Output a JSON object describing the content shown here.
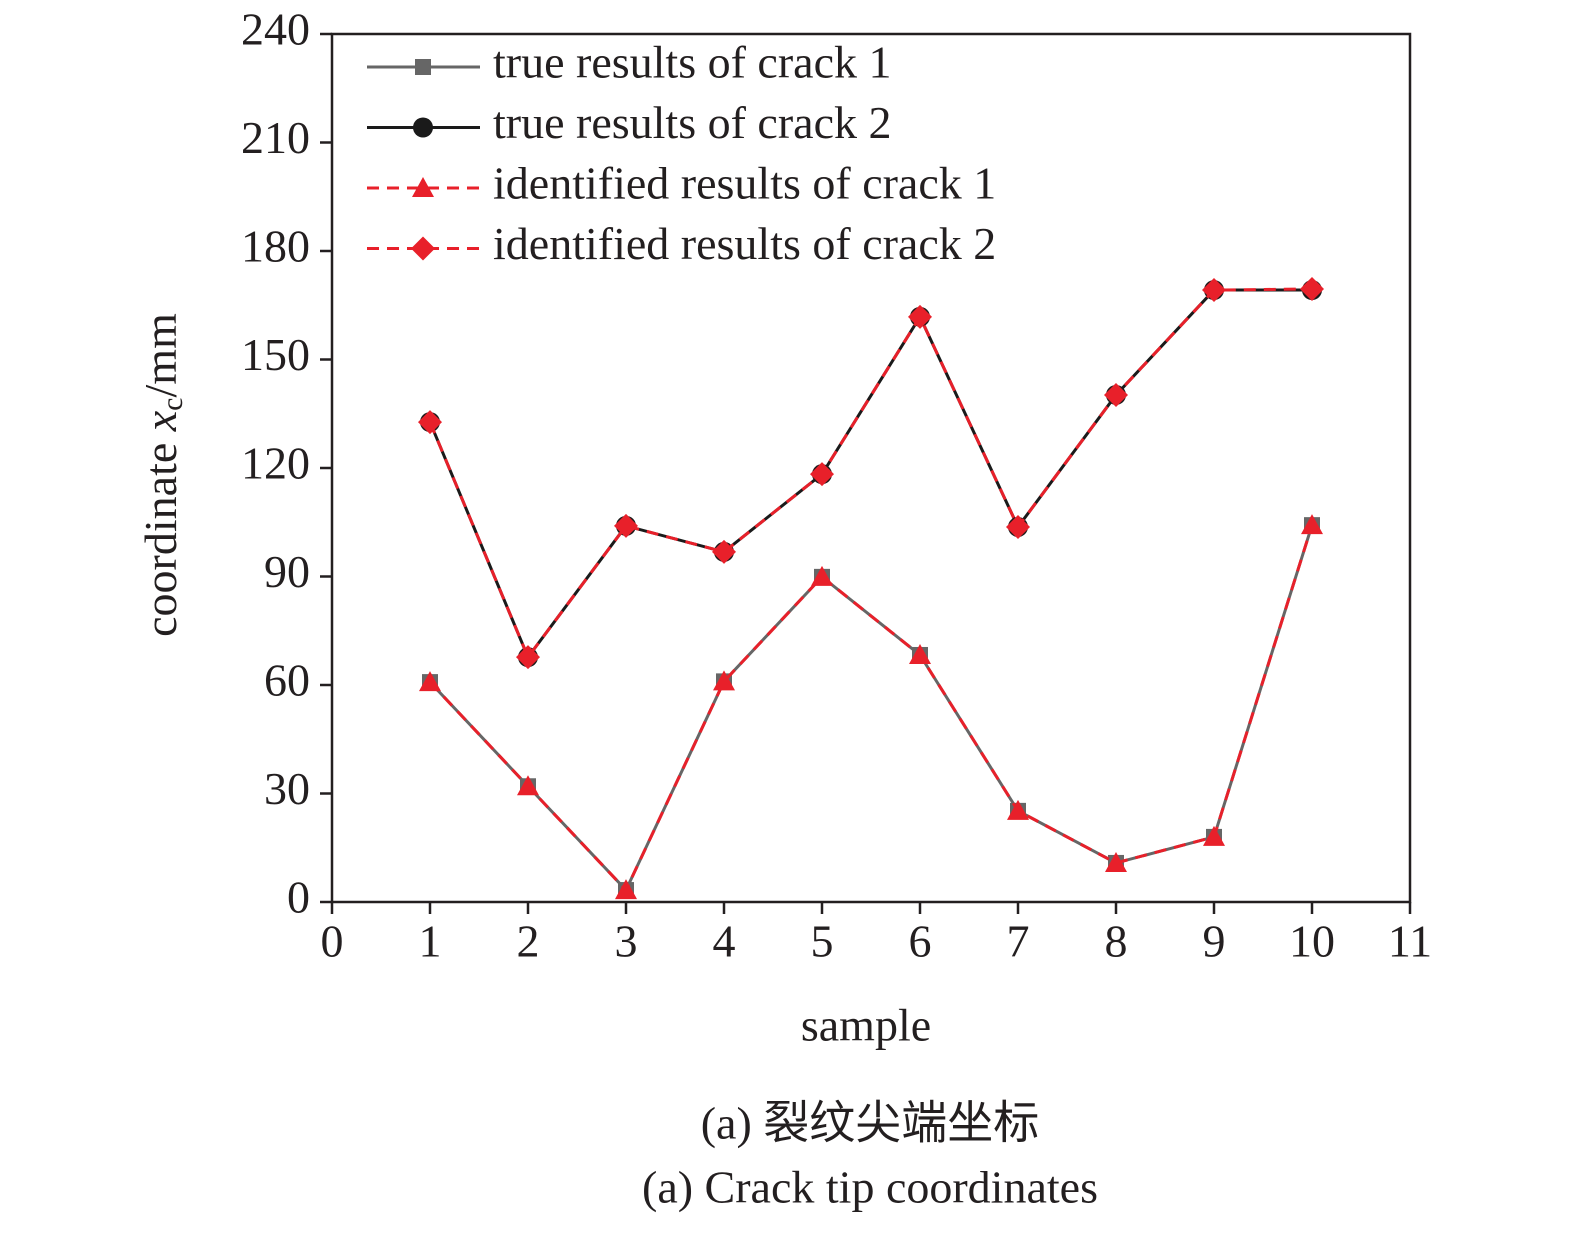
{
  "chart_data": {
    "type": "line",
    "y_label": [
      "coordinate ",
      "x",
      "c",
      "/mm"
    ],
    "x_label": "sample",
    "captions": [
      "(a) 裂纹尖端坐标",
      "(a) Crack tip coordinates"
    ],
    "x": [
      1,
      2,
      3,
      4,
      5,
      6,
      7,
      8,
      9,
      10
    ],
    "xlim": [
      0,
      11
    ],
    "xticks": [
      0,
      1,
      2,
      3,
      4,
      5,
      6,
      7,
      8,
      9,
      10,
      11
    ],
    "ylim": [
      0,
      240
    ],
    "yticks": [
      0,
      30,
      60,
      90,
      120,
      150,
      180,
      210,
      240
    ],
    "grid": false,
    "legend": "upper left",
    "series": [
      {
        "name": "true results of crack 1",
        "color": "#666666",
        "marker": "square",
        "dash": false,
        "values": [
          60.8,
          32,
          3.3,
          61,
          89.9,
          68.3,
          25.2,
          10.8,
          18,
          104.2
        ]
      },
      {
        "name": "true results of crack 2",
        "color": "#1a1a1a",
        "marker": "circle",
        "dash": false,
        "values": [
          132.7,
          67.7,
          104,
          96.8,
          118.3,
          161.8,
          103.7,
          140.2,
          169.2,
          169.2
        ]
      },
      {
        "name": "identified results of crack 1",
        "color": "#e8202a",
        "marker": "triangle",
        "dash": true,
        "values": [
          60.8,
          32,
          3.3,
          61,
          89.9,
          68.3,
          25.2,
          10.8,
          18,
          104.2
        ]
      },
      {
        "name": "identified results of crack 2",
        "color": "#e8202a",
        "marker": "diamond",
        "dash": true,
        "values": [
          132.7,
          67.7,
          104,
          96.8,
          118.3,
          161.8,
          103.7,
          140.2,
          169.2,
          169.5
        ]
      }
    ]
  }
}
